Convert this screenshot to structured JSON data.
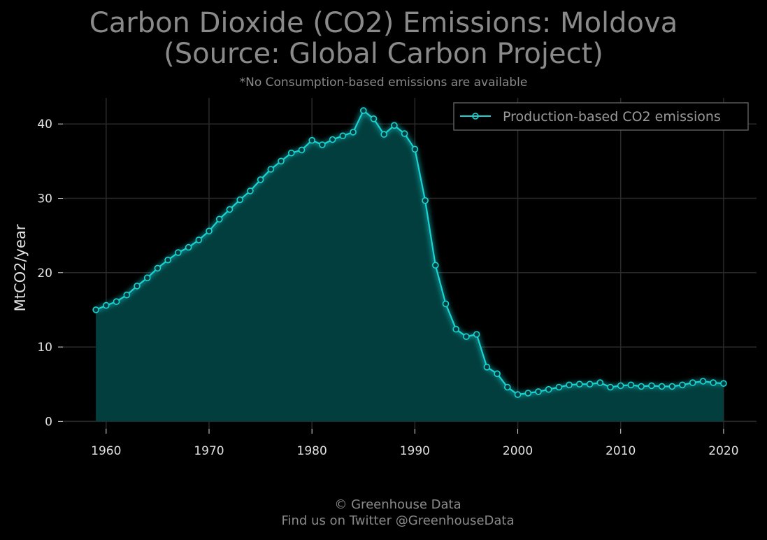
{
  "chart_data": {
    "type": "area",
    "title_line1": "Carbon Dioxide (CO2) Emissions: Moldova",
    "title_line2": "(Source: Global Carbon Project)",
    "subtitle": "*No Consumption-based emissions are available",
    "xlabel": "",
    "ylabel": "MtCO2/year",
    "xlim": [
      1955.8,
      2023.2
    ],
    "ylim": [
      -1,
      43.5
    ],
    "xticks": [
      1960,
      1970,
      1980,
      1990,
      2000,
      2010,
      2020
    ],
    "yticks": [
      0,
      10,
      20,
      30,
      40
    ],
    "grid": true,
    "legend_position": "top-right",
    "series": [
      {
        "name": "Production-based CO2 emissions",
        "color": "#19d3d3",
        "x": [
          1959,
          1960,
          1961,
          1962,
          1963,
          1964,
          1965,
          1966,
          1967,
          1968,
          1969,
          1970,
          1971,
          1972,
          1973,
          1974,
          1975,
          1976,
          1977,
          1978,
          1979,
          1980,
          1981,
          1982,
          1983,
          1984,
          1985,
          1986,
          1987,
          1988,
          1989,
          1990,
          1991,
          1992,
          1993,
          1994,
          1995,
          1996,
          1997,
          1998,
          1999,
          2000,
          2001,
          2002,
          2003,
          2004,
          2005,
          2006,
          2007,
          2008,
          2009,
          2010,
          2011,
          2012,
          2013,
          2014,
          2015,
          2016,
          2017,
          2018,
          2019,
          2020
        ],
        "y": [
          15.0,
          15.6,
          16.1,
          17.0,
          18.2,
          19.3,
          20.6,
          21.7,
          22.7,
          23.4,
          24.4,
          25.6,
          27.2,
          28.5,
          29.8,
          31.0,
          32.5,
          33.9,
          35.0,
          36.1,
          36.5,
          37.8,
          37.2,
          37.9,
          38.4,
          38.9,
          41.8,
          40.7,
          38.6,
          39.8,
          38.7,
          36.6,
          29.7,
          21.0,
          15.8,
          12.4,
          11.4,
          11.7,
          7.3,
          6.4,
          4.6,
          3.6,
          3.8,
          4.0,
          4.3,
          4.6,
          4.9,
          5.0,
          5.0,
          5.2,
          4.6,
          4.8,
          4.9,
          4.7,
          4.8,
          4.7,
          4.7,
          4.9,
          5.2,
          5.4,
          5.2,
          5.1
        ]
      }
    ]
  },
  "footer": {
    "line1": "© Greenhouse Data",
    "line2": "Find us on Twitter @GreenhouseData"
  },
  "colors": {
    "background": "#000000",
    "grid": "#2a2a2a",
    "axis_text": "#e0e0e0",
    "muted_text": "#8a8a8a",
    "fill": "#023e3e",
    "line": "#19d3d3"
  }
}
